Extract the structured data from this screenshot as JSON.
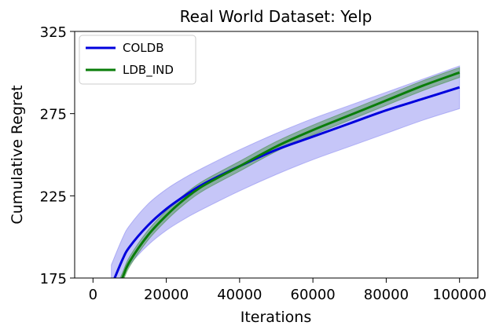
{
  "chart_data": {
    "type": "line",
    "title": "Real World Dataset: Yelp",
    "xlabel": "Iterations",
    "ylabel": "Cumulative Regret",
    "xlim": [
      -5000,
      105000
    ],
    "ylim": [
      175,
      325
    ],
    "x_ticks": [
      0,
      20000,
      40000,
      60000,
      80000,
      100000
    ],
    "x_tick_labels": [
      "0",
      "20000",
      "40000",
      "60000",
      "80000",
      "100000"
    ],
    "y_ticks": [
      175,
      225,
      275,
      325
    ],
    "y_tick_labels": [
      "175",
      "225",
      "275",
      "325"
    ],
    "legend_position": "top-left",
    "grid": false,
    "x": [
      5000,
      8000,
      10000,
      15000,
      20000,
      25000,
      30000,
      40000,
      50000,
      60000,
      70000,
      80000,
      90000,
      100000
    ],
    "series": [
      {
        "name": "COLDB",
        "color": "#0000dd",
        "band_color": "#8080f0",
        "values": [
          170,
          186,
          194,
          207,
          217,
          225,
          232,
          243,
          253,
          261,
          269,
          277,
          284,
          291
        ],
        "band_lower": [
          160,
          175,
          183,
          195,
          204,
          211,
          217,
          228,
          238,
          247,
          255,
          263,
          271,
          278
        ],
        "band_upper": [
          183,
          199,
          207,
          220,
          229,
          236,
          242,
          253,
          263,
          272,
          280,
          288,
          296,
          304
        ]
      },
      {
        "name": "LDB_IND",
        "color": "#0a7d0a",
        "band_color": "#3c8c3c",
        "values": [
          160,
          175,
          185,
          201,
          213,
          223,
          231,
          243,
          255,
          265,
          274,
          283,
          292,
          300
        ],
        "band_lower": [
          157,
          172,
          182,
          198,
          210,
          220,
          228,
          240,
          252,
          262,
          271,
          280,
          289,
          297
        ],
        "band_upper": [
          163,
          178,
          188,
          204,
          216,
          226,
          234,
          246,
          258,
          268,
          277,
          286,
          295,
          303
        ]
      }
    ]
  }
}
